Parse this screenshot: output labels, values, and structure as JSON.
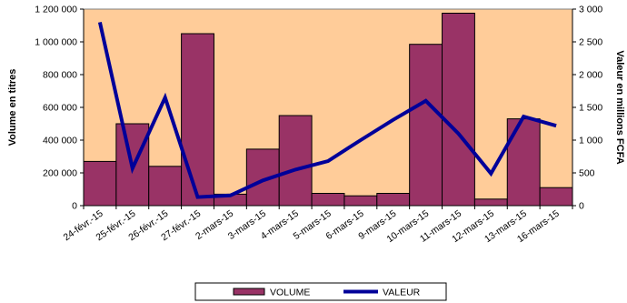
{
  "chart_data": {
    "type": "bar",
    "categories": [
      "24-févr.-15",
      "25-févr.-15",
      "26-févr.-15",
      "27-févr.-15",
      "2-mars-15",
      "3-mars-15",
      "4-mars-15",
      "5-mars-15",
      "6-mars-15",
      "9-mars-15",
      "10-mars-15",
      "11-mars-15",
      "12-mars-15",
      "13-mars-15",
      "16-mars-15"
    ],
    "series": [
      {
        "name": "VOLUME",
        "type": "bar",
        "axis": "left",
        "color": "#993366",
        "values": [
          270000,
          500000,
          240000,
          1050000,
          70000,
          345000,
          550000,
          75000,
          60000,
          75000,
          985000,
          1175000,
          40000,
          530000,
          110000
        ]
      },
      {
        "name": "VALEUR",
        "type": "line",
        "axis": "right",
        "color": "#000099",
        "values": [
          2800,
          570,
          1650,
          130,
          155,
          385,
          550,
          680,
          1000,
          1310,
          1600,
          1100,
          490,
          1360,
          1220
        ]
      }
    ],
    "ylabel": "Volume en titres",
    "y2label": "Valeur en millions FCFA",
    "ylim": [
      0,
      1200000
    ],
    "y2lim": [
      0,
      3000
    ],
    "yticks": [
      "0",
      "200 000",
      "400 000",
      "600 000",
      "800 000",
      "1 000 000",
      "1 200 000"
    ],
    "y2ticks": [
      "0",
      "500",
      "1 000",
      "1 500",
      "2 000",
      "2 500",
      "3 000"
    ],
    "grid": false,
    "legend_position": "bottom",
    "plot_background": "#FFCC99"
  }
}
